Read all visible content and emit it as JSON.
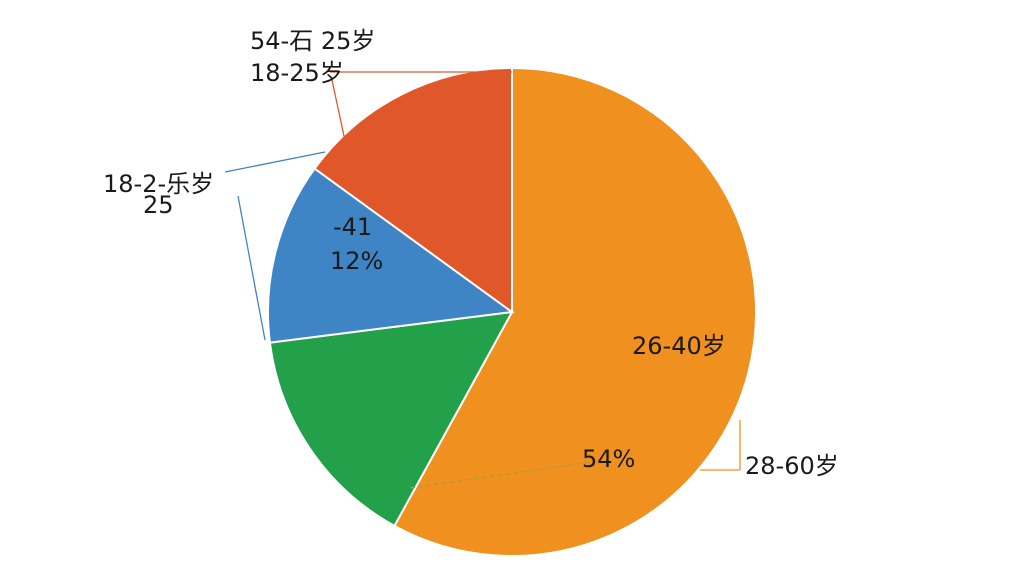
{
  "chart_data": {
    "type": "pie",
    "categories": [
      "26-40岁",
      null,
      "18-2-乐岁",
      "18-25岁"
    ],
    "values": [
      58,
      15,
      12,
      15
    ],
    "value_labels": [
      null,
      null,
      "12%",
      null
    ],
    "colors": [
      "#f0901e",
      "#22a04a",
      "#3f84c4",
      "#e0582a"
    ],
    "annotations": [
      "54-石 25岁",
      "25",
      "-41",
      "54%",
      "28-60岁"
    ]
  }
}
